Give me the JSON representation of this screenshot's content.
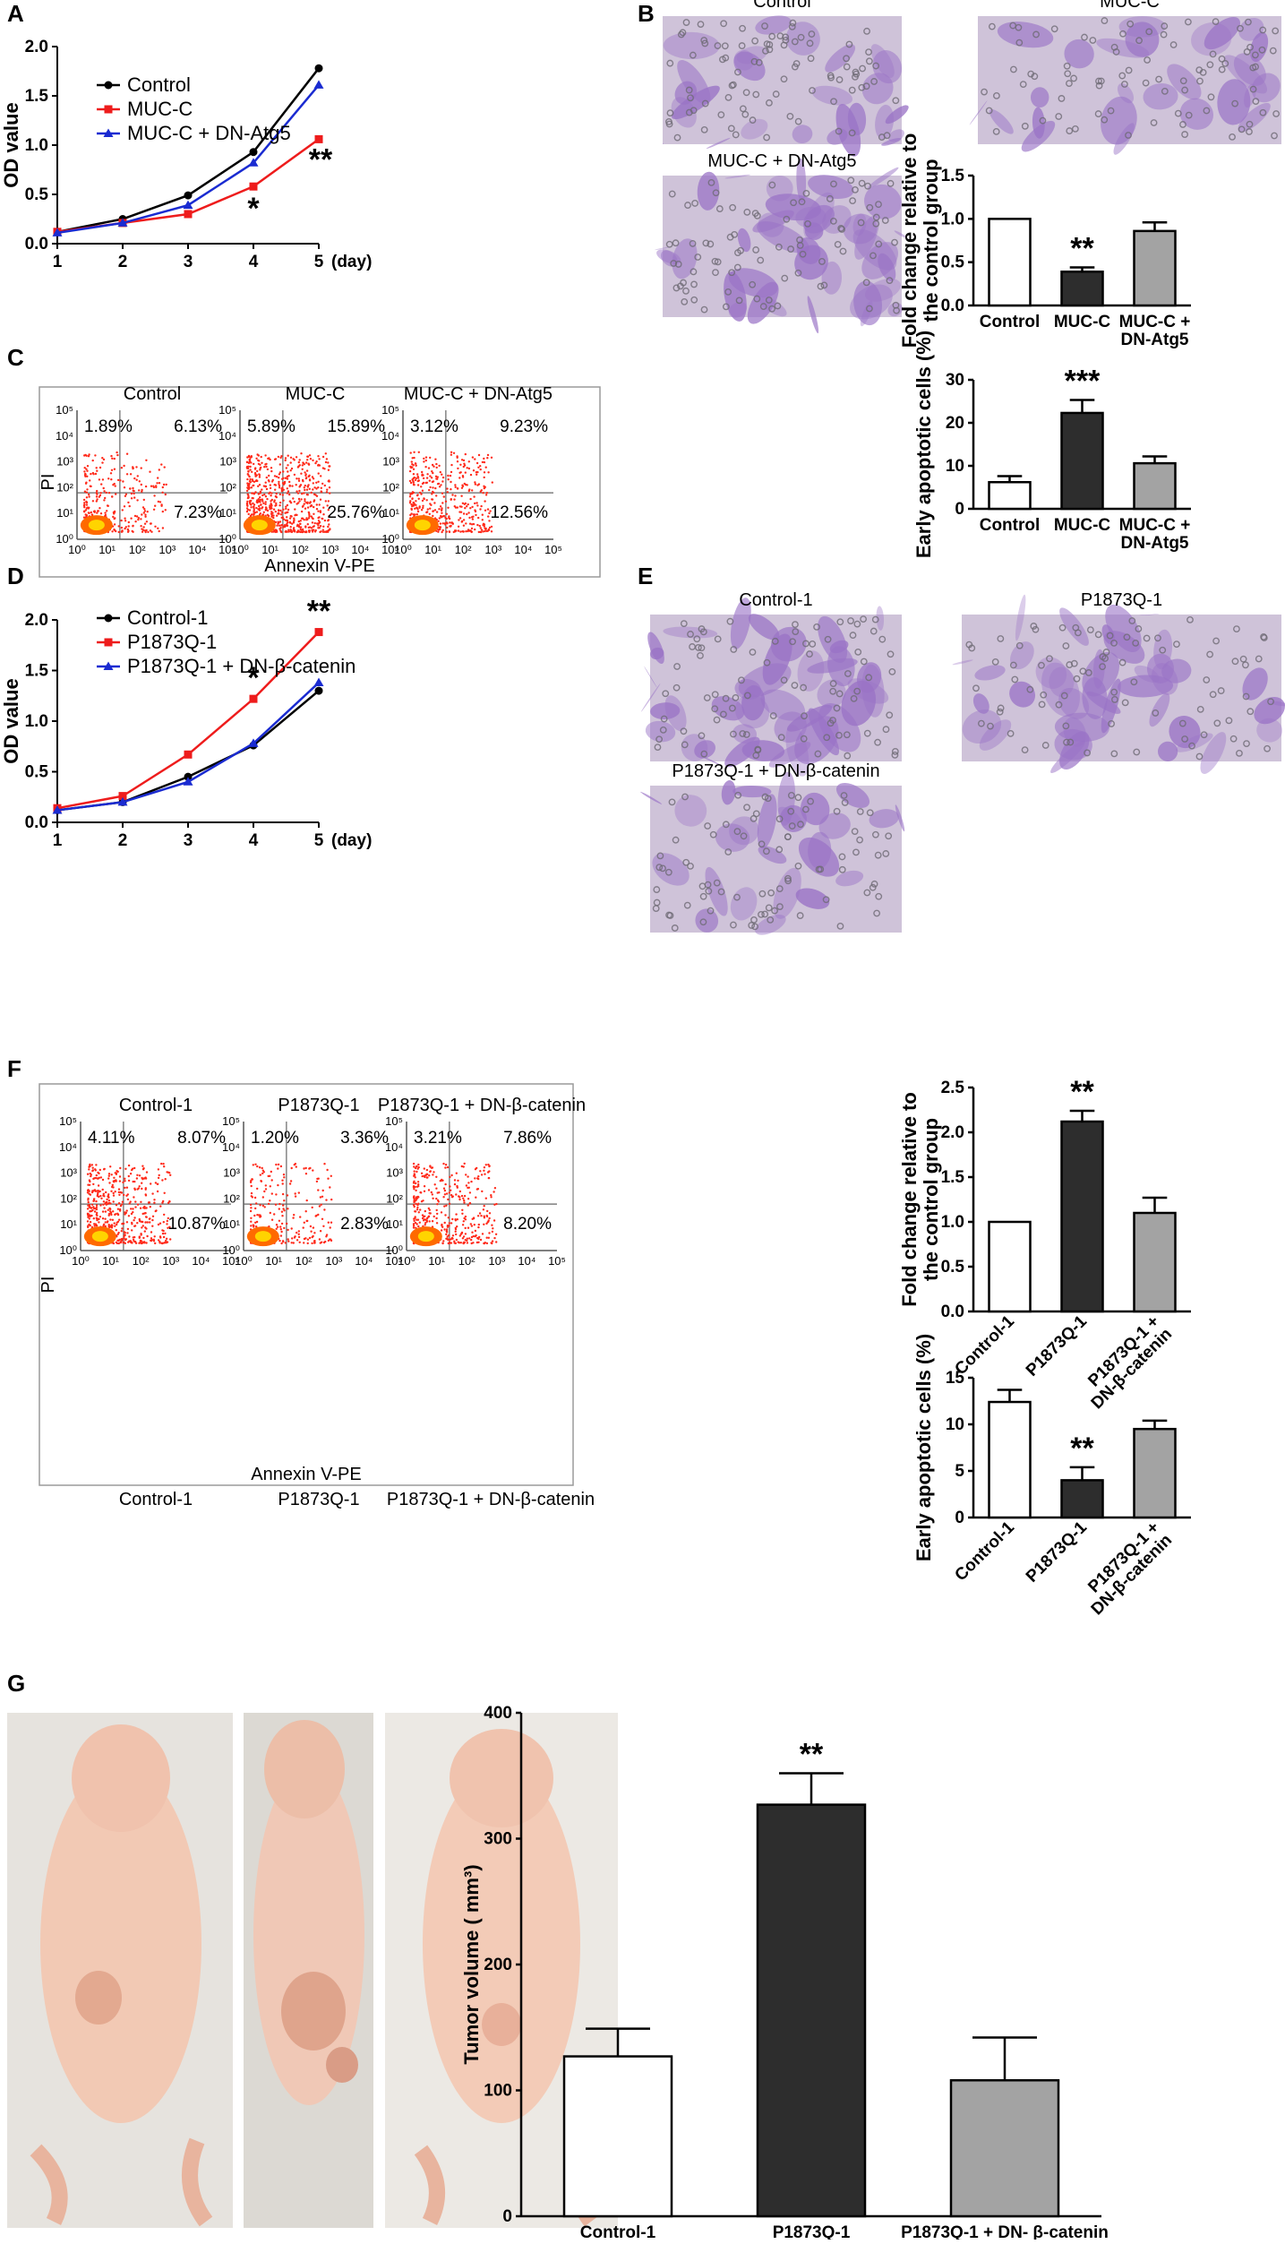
{
  "colors": {
    "black": "#000000",
    "red": "#ee1c1c",
    "blue": "#1a2bd1",
    "dark": "#2d2d2d",
    "gray": "#a3a3a3",
    "stain": "#9a73c6",
    "dot": "#ff2a1a"
  },
  "panel_labels": [
    "A",
    "B",
    "C",
    "D",
    "E",
    "F",
    "G"
  ],
  "chart_data": [
    {
      "id": "A",
      "type": "line",
      "xlabel_suffix": "(day)",
      "ylabel": "OD value",
      "x": [
        1,
        2,
        3,
        4,
        5
      ],
      "xlim": [
        1,
        5
      ],
      "ylim": [
        0,
        2.0
      ],
      "yticks": [
        "0.0",
        "0.5",
        "1.0",
        "1.5",
        "2.0"
      ],
      "series": [
        {
          "name": "Control",
          "values": [
            0.12,
            0.25,
            0.49,
            0.93,
            1.78
          ]
        },
        {
          "name": "MUC-C",
          "values": [
            0.12,
            0.21,
            0.3,
            0.58,
            1.06
          ]
        },
        {
          "name": "MUC-C + DN-Atg5",
          "values": [
            0.11,
            0.21,
            0.39,
            0.82,
            1.61
          ]
        }
      ],
      "annotations": [
        {
          "x": 4,
          "text": "*"
        },
        {
          "x": 5,
          "text": "**"
        }
      ]
    },
    {
      "id": "B",
      "type": "bar",
      "ylabel": [
        "Fold change relative to",
        "the control group"
      ],
      "categories": [
        [
          "Control"
        ],
        [
          "MUC-C"
        ],
        [
          "MUC-C +",
          "DN-Atg5"
        ]
      ],
      "values": [
        1.0,
        0.39,
        0.86
      ],
      "errors": [
        0,
        0.05,
        0.1
      ],
      "ylim": [
        0,
        1.5
      ],
      "yticks": [
        "0.0",
        "0.5",
        "1.0",
        "1.5"
      ],
      "annotations": [
        {
          "index": 1,
          "text": "**"
        }
      ]
    },
    {
      "id": "C",
      "type": "bar",
      "ylabel": [
        "Early apoptotic cells (%)"
      ],
      "categories": [
        [
          "Control"
        ],
        [
          "MUC-C"
        ],
        [
          "MUC-C +",
          "DN-Atg5"
        ]
      ],
      "values": [
        6.2,
        22.3,
        10.6
      ],
      "errors": [
        1.4,
        3.0,
        1.6
      ],
      "ylim": [
        0,
        30
      ],
      "yticks": [
        "0",
        "10",
        "20",
        "30"
      ],
      "annotations": [
        {
          "index": 1,
          "text": "***"
        }
      ]
    },
    {
      "id": "D",
      "type": "line",
      "xlabel_suffix": "(day)",
      "ylabel": "OD value",
      "x": [
        1,
        2,
        3,
        4,
        5
      ],
      "xlim": [
        1,
        5
      ],
      "ylim": [
        0,
        2.0
      ],
      "yticks": [
        "0.0",
        "0.5",
        "1.0",
        "1.5",
        "2.0"
      ],
      "series": [
        {
          "name": "Control-1",
          "values": [
            0.12,
            0.2,
            0.45,
            0.76,
            1.3
          ]
        },
        {
          "name": "P1873Q-1",
          "values": [
            0.14,
            0.26,
            0.67,
            1.22,
            1.88
          ]
        },
        {
          "name": "P1873Q-1 + DN-β-catenin",
          "values": [
            0.12,
            0.2,
            0.4,
            0.78,
            1.38
          ]
        }
      ],
      "annotations": [
        {
          "x": 4,
          "text": "*"
        },
        {
          "x": 5,
          "text": "**"
        }
      ]
    },
    {
      "id": "E",
      "type": "bar",
      "ylabel": [
        "Fold change relative to",
        "the control group"
      ],
      "categories": [
        [
          "Control-1"
        ],
        [
          "P1873Q-1"
        ],
        [
          "P1873Q-1 +",
          "DN-β-catenin"
        ]
      ],
      "values": [
        1.0,
        2.12,
        1.1
      ],
      "errors": [
        0,
        0.12,
        0.17
      ],
      "ylim": [
        0,
        2.5
      ],
      "yticks": [
        "0.0",
        "0.5",
        "1.0",
        "1.5",
        "2.0",
        "2.5"
      ],
      "annotations": [
        {
          "index": 1,
          "text": "**"
        }
      ]
    },
    {
      "id": "F",
      "type": "bar",
      "ylabel": [
        "Early apoptotic cells (%)"
      ],
      "categories": [
        [
          "Control-1"
        ],
        [
          "P1873Q-1"
        ],
        [
          "P1873Q-1 +",
          "DN-β-catenin"
        ]
      ],
      "values": [
        12.4,
        4.0,
        9.5
      ],
      "errors": [
        1.3,
        1.4,
        0.9
      ],
      "ylim": [
        0,
        15
      ],
      "yticks": [
        "0",
        "5",
        "10",
        "15"
      ],
      "annotations": [
        {
          "index": 1,
          "text": "**"
        }
      ]
    },
    {
      "id": "G",
      "type": "bar",
      "ylabel": [
        "Tumor volume ( mm³)"
      ],
      "categories": [
        [
          "Control-1"
        ],
        [
          "P1873Q-1"
        ],
        [
          "P1873Q-1 + DN- β-catenin"
        ]
      ],
      "values": [
        127,
        327,
        108
      ],
      "errors": [
        22,
        25,
        34
      ],
      "ylim": [
        0,
        400
      ],
      "yticks": [
        "0",
        "100",
        "200",
        "300",
        "400"
      ],
      "annotations": [
        {
          "index": 1,
          "text": "**"
        }
      ]
    }
  ],
  "micrographs": {
    "B": [
      "Control",
      "MUC-C",
      "MUC-C + DN-Atg5"
    ],
    "E": [
      "Control-1",
      "P1873Q-1",
      "P1873Q-1 + DN-β-catenin"
    ]
  },
  "flow": {
    "C": {
      "xlabel": "Annexin V-PE",
      "ylabel": "PI",
      "ticks": [
        "10⁰",
        "10¹",
        "10²",
        "10³",
        "10⁴",
        "10⁵"
      ],
      "plots": [
        {
          "title": "Control",
          "ul": "1.89%",
          "ur": "6.13%",
          "lr": "7.23%"
        },
        {
          "title": "MUC-C",
          "ul": "5.89%",
          "ur": "15.89%",
          "lr": "25.76%"
        },
        {
          "title": "MUC-C + DN-Atg5",
          "ul": "3.12%",
          "ur": "9.23%",
          "lr": "12.56%"
        }
      ]
    },
    "F": {
      "xlabel": "Annexin V-PE",
      "ylabel": "PI",
      "ticks": [
        "10⁰",
        "10¹",
        "10²",
        "10³",
        "10⁴",
        "10⁵"
      ],
      "plots": [
        {
          "title": "Control-1",
          "ul": "4.11%",
          "ur": "8.07%",
          "lr": "10.87%"
        },
        {
          "title": "P1873Q-1",
          "ul": "1.20%",
          "ur": "3.36%",
          "lr": "2.83%"
        },
        {
          "title": "P1873Q-1 + DN-β-catenin",
          "ul": "3.21%",
          "ur": "7.86%",
          "lr": "8.20%"
        }
      ],
      "bottom_labels": [
        "Control-1",
        "P1873Q-1",
        "P1873Q-1 + DN-β-catenin"
      ]
    }
  }
}
